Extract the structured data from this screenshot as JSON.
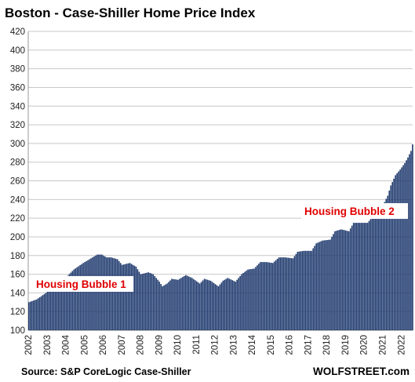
{
  "footer": {
    "source": "Source: S&P CoreLogic Case-Shiller",
    "brand": "WOLFSTREET.com"
  },
  "chart_data": {
    "type": "bar",
    "title": "Boston - Case-Shiller Home Price Index",
    "xlabel": "",
    "ylabel": "",
    "ylim": [
      100,
      420
    ],
    "yticks": [
      100,
      120,
      140,
      160,
      180,
      200,
      220,
      240,
      260,
      280,
      300,
      320,
      340,
      360,
      380,
      400,
      420
    ],
    "grid": true,
    "bar_color": "#1f3a6e",
    "x_tick_labels": [
      "2002",
      "2003",
      "2004",
      "2005",
      "2006",
      "2007",
      "2008",
      "2009",
      "2010",
      "2011",
      "2012",
      "2013",
      "2014",
      "2015",
      "2016",
      "2017",
      "2018",
      "2019",
      "2020",
      "2021",
      "2022"
    ],
    "annotations": [
      {
        "text": "Housing Bubble 1",
        "color": "#e00000"
      },
      {
        "text": "Housing Bubble 2",
        "color": "#e00000"
      }
    ],
    "monthly_anchors": [
      [
        "2002-01",
        130
      ],
      [
        "2002-06",
        133
      ],
      [
        "2002-12",
        140
      ],
      [
        "2003-06",
        148
      ],
      [
        "2003-12",
        155
      ],
      [
        "2004-06",
        165
      ],
      [
        "2004-12",
        172
      ],
      [
        "2005-06",
        178
      ],
      [
        "2005-09",
        181
      ],
      [
        "2005-12",
        181
      ],
      [
        "2006-03",
        178
      ],
      [
        "2006-06",
        178
      ],
      [
        "2006-10",
        176
      ],
      [
        "2007-01",
        170
      ],
      [
        "2007-06",
        172
      ],
      [
        "2007-10",
        168
      ],
      [
        "2008-01",
        160
      ],
      [
        "2008-06",
        162
      ],
      [
        "2008-09",
        160
      ],
      [
        "2009-01",
        152
      ],
      [
        "2009-03",
        147
      ],
      [
        "2009-06",
        150
      ],
      [
        "2009-09",
        155
      ],
      [
        "2010-01",
        154
      ],
      [
        "2010-06",
        159
      ],
      [
        "2010-10",
        156
      ],
      [
        "2011-03",
        150
      ],
      [
        "2011-06",
        155
      ],
      [
        "2011-10",
        153
      ],
      [
        "2012-03",
        147
      ],
      [
        "2012-06",
        153
      ],
      [
        "2012-09",
        156
      ],
      [
        "2013-02",
        152
      ],
      [
        "2013-06",
        160
      ],
      [
        "2013-10",
        165
      ],
      [
        "2014-02",
        166
      ],
      [
        "2014-06",
        173
      ],
      [
        "2014-10",
        173
      ],
      [
        "2015-02",
        172
      ],
      [
        "2015-06",
        178
      ],
      [
        "2015-10",
        178
      ],
      [
        "2016-03",
        177
      ],
      [
        "2016-06",
        184
      ],
      [
        "2016-10",
        185
      ],
      [
        "2017-03",
        185
      ],
      [
        "2017-06",
        193
      ],
      [
        "2017-10",
        196
      ],
      [
        "2018-03",
        197
      ],
      [
        "2018-06",
        206
      ],
      [
        "2018-10",
        208
      ],
      [
        "2019-03",
        206
      ],
      [
        "2019-06",
        215
      ],
      [
        "2019-10",
        215
      ],
      [
        "2020-03",
        215
      ],
      [
        "2020-06",
        221
      ],
      [
        "2020-10",
        226
      ],
      [
        "2021-01",
        234
      ],
      [
        "2021-04",
        244
      ],
      [
        "2021-06",
        255
      ],
      [
        "2021-09",
        266
      ],
      [
        "2021-12",
        272
      ],
      [
        "2022-03",
        279
      ],
      [
        "2022-05",
        285
      ],
      [
        "2022-07",
        292
      ],
      [
        "2022-08",
        299
      ]
    ]
  }
}
